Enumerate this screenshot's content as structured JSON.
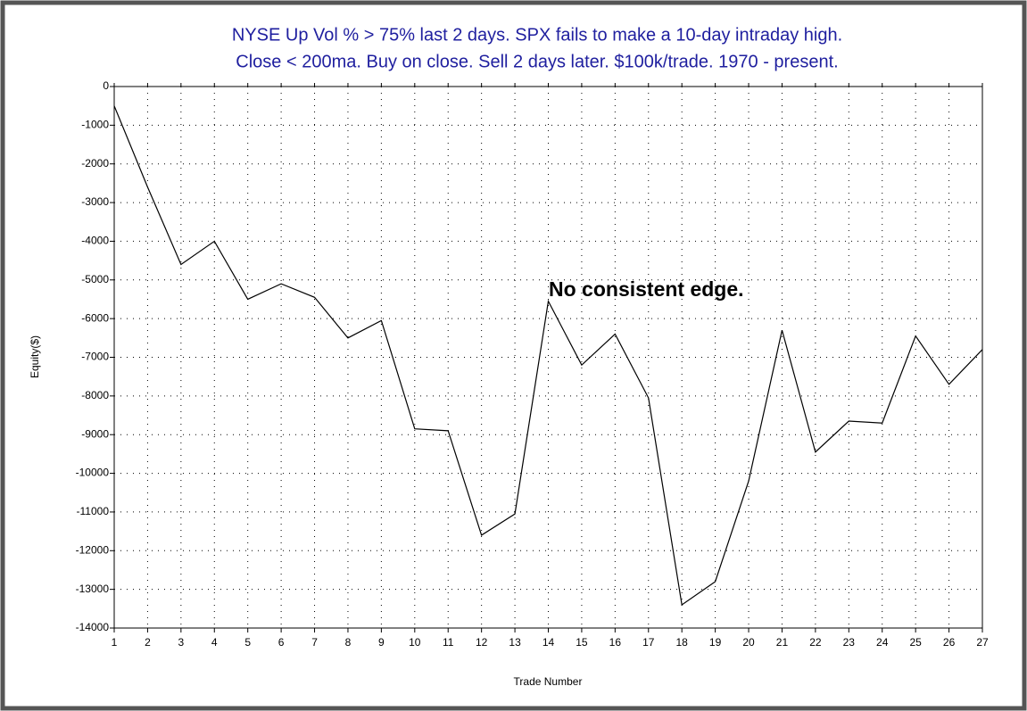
{
  "chart_data": {
    "type": "line",
    "title": [
      "NYSE Up Vol % > 75% last 2 days. SPX fails to make a 10-day intraday high.",
      "Close < 200ma. Buy on close. Sell 2 days later. $100k/trade. 1970 - present."
    ],
    "annotation": "No consistent edge.",
    "x_label": "Trade Number",
    "y_label": "Equity($)",
    "x": [
      1,
      2,
      3,
      4,
      5,
      6,
      7,
      8,
      9,
      10,
      11,
      12,
      13,
      14,
      15,
      16,
      17,
      18,
      19,
      20,
      21,
      22,
      23,
      24,
      25,
      26,
      27
    ],
    "series": [
      {
        "name": "Equity",
        "color": "#000000",
        "values": [
          -500,
          -2600,
          -4600,
          -4000,
          -5500,
          -5100,
          -5450,
          -6500,
          -6050,
          -8850,
          -8900,
          -11600,
          -11050,
          -5550,
          -7200,
          -6400,
          -8050,
          -13400,
          -12800,
          -10200,
          -6300,
          -9450,
          -8650,
          -8700,
          -6450,
          -7700,
          -6800
        ]
      }
    ],
    "xlim": [
      1,
      27
    ],
    "xticks": [
      1,
      2,
      3,
      4,
      5,
      6,
      7,
      8,
      9,
      10,
      11,
      12,
      13,
      14,
      15,
      16,
      17,
      18,
      19,
      20,
      21,
      22,
      23,
      24,
      25,
      26,
      27
    ],
    "ylim": [
      -14000,
      0
    ],
    "yticks": [
      0,
      -1000,
      -2000,
      -3000,
      -4000,
      -5000,
      -6000,
      -7000,
      -8000,
      -9000,
      -10000,
      -11000,
      -12000,
      -13000,
      -14000
    ],
    "grid": true
  }
}
